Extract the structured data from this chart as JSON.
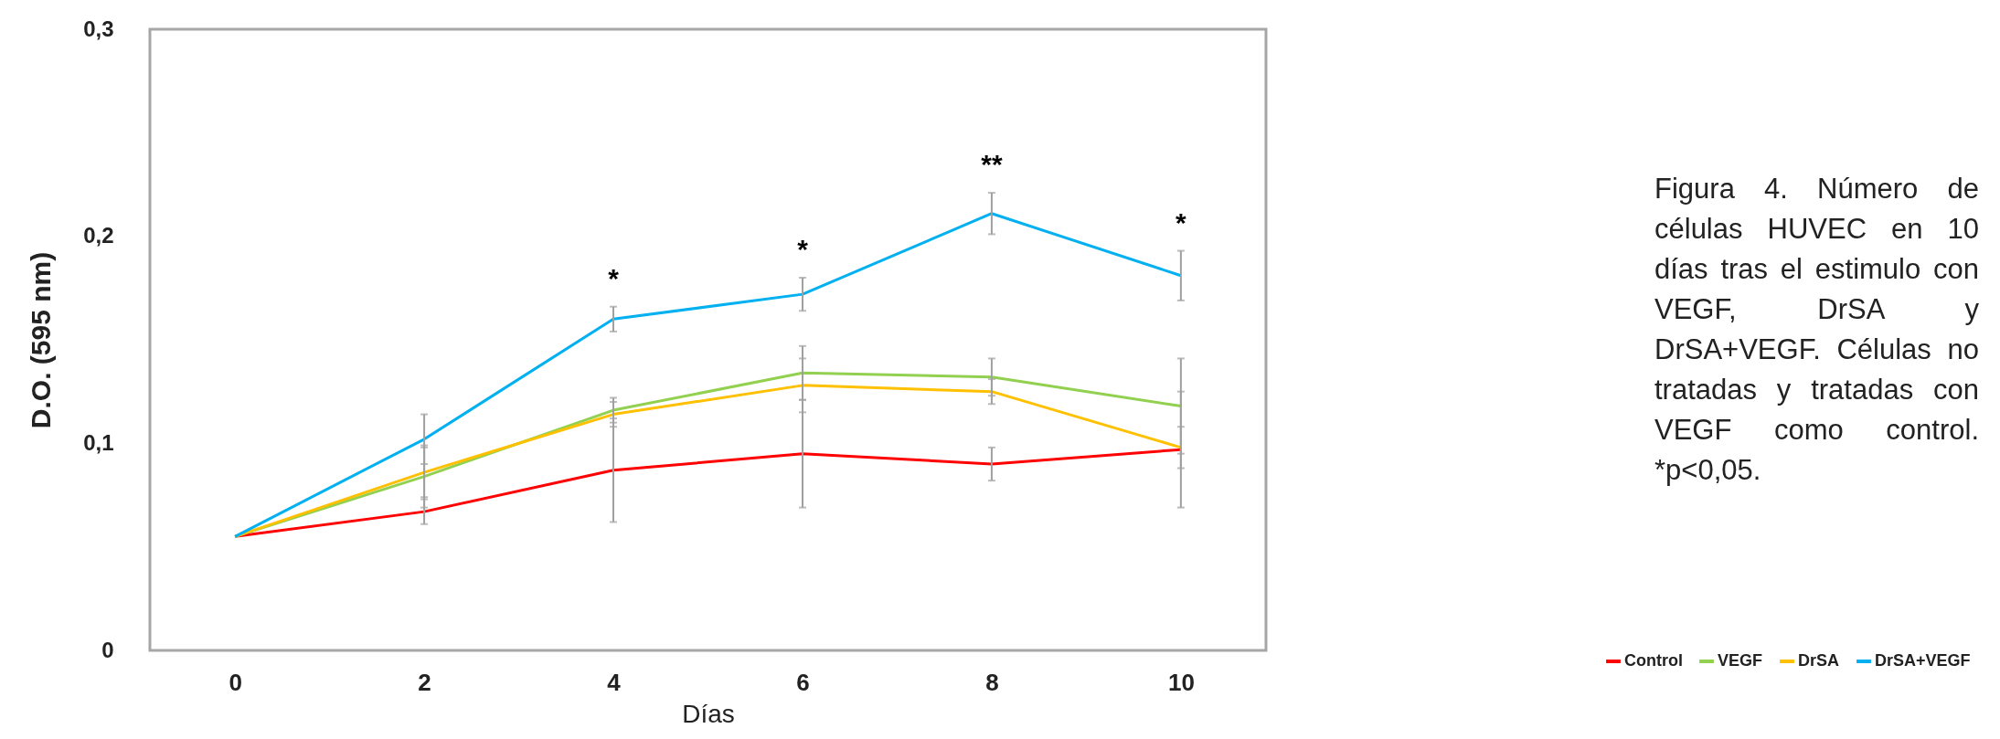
{
  "chart_data": {
    "type": "line",
    "xlabel": "Días",
    "ylabel": "D.O. (595 nm)",
    "categories": [
      "0",
      "2",
      "4",
      "6",
      "8",
      "10"
    ],
    "ylim": [
      0,
      0.3
    ],
    "yticks": [
      0,
      {
        "value": 0.1,
        "label": "0,1"
      },
      {
        "value": 0.2,
        "label": "0,2"
      },
      {
        "value": 0.3,
        "label": "0,3"
      }
    ],
    "grid": false,
    "legend": "right",
    "marker": "none",
    "line_style": "solid",
    "series": [
      {
        "name": "Control",
        "color": "#ff0000",
        "values": [
          0.055,
          0.067,
          0.087,
          0.095,
          0.09,
          0.097
        ],
        "errors": [
          null,
          0.006,
          0.025,
          0.026,
          0.008,
          0.028
        ]
      },
      {
        "name": "VEGF",
        "color": "#92d050",
        "values": [
          0.055,
          0.084,
          0.116,
          0.134,
          0.132,
          0.118
        ],
        "errors": [
          null,
          0.015,
          0.006,
          0.013,
          0.009,
          0.023
        ]
      },
      {
        "name": "DrSA",
        "color": "#ffc000",
        "values": [
          0.055,
          0.086,
          0.114,
          0.128,
          0.125,
          0.098
        ],
        "errors": [
          null,
          0.012,
          0.006,
          0.013,
          0.006,
          0.01
        ]
      },
      {
        "name": "DrSA+VEGF",
        "color": "#00b0f0",
        "values": [
          0.055,
          0.102,
          0.16,
          0.172,
          0.211,
          0.181
        ],
        "errors": [
          null,
          0.012,
          0.006,
          0.008,
          0.01,
          0.012
        ],
        "value_labels": [
          null,
          null,
          "*",
          "*",
          "**",
          "*"
        ]
      }
    ],
    "annotations": [
      "Figura 4. Número de células HUVEC en 10 días tras el estimulo con VEGF, DrSA y DrSA+VEGF. Células no tratadas y tratadas con VEGF como control. *p<0,05."
    ]
  }
}
